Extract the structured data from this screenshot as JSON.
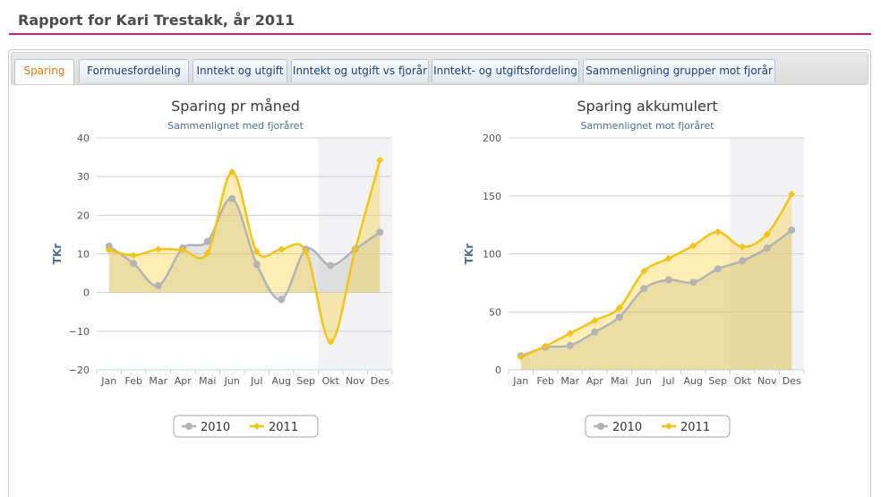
{
  "report": {
    "title": "Rapport for Kari Trestakk, år 2011"
  },
  "tabs": [
    {
      "label": "Sparing",
      "active": true
    },
    {
      "label": "Formuesfordeling",
      "active": false
    },
    {
      "label": "Inntekt og utgift",
      "active": false
    },
    {
      "label": "Inntekt og utgift vs fjorår",
      "active": false
    },
    {
      "label": "Inntekt- og utgiftsfordeling",
      "active": false
    },
    {
      "label": "Sammenligning grupper mot fjorår",
      "active": false
    }
  ],
  "colors": {
    "series_2010": "#b3b3b3",
    "series_2011": "#f2c419",
    "accent_line": "#cc1f7e",
    "active_tab": "#e07a10"
  },
  "chart_data": [
    {
      "type": "area",
      "title": "Sparing pr måned",
      "subtitle": "Sammenlignet med fjoråret",
      "ylabel": "TKr",
      "categories": [
        "Jan",
        "Feb",
        "Mar",
        "Apr",
        "Mai",
        "Jun",
        "Jul",
        "Aug",
        "Sep",
        "Okt",
        "Nov",
        "Des"
      ],
      "ylim": [
        -20,
        40
      ],
      "yticks": [
        -20,
        -10,
        0,
        10,
        20,
        30,
        40
      ],
      "shaded_categories": [
        "Okt",
        "Nov",
        "Des"
      ],
      "grid": true,
      "legend": "bottom-center",
      "series": [
        {
          "name": "2010",
          "values": [
            12,
            7.5,
            1.8,
            11.5,
            13.2,
            24.3,
            7.3,
            -1.8,
            11.2,
            7,
            11.2,
            15.6
          ]
        },
        {
          "name": "2011",
          "values": [
            11,
            9.6,
            11.2,
            11,
            10.2,
            31.2,
            10.6,
            11.2,
            10.6,
            -12.8,
            11.1,
            34.2
          ]
        }
      ]
    },
    {
      "type": "area",
      "title": "Sparing akkumulert",
      "subtitle": "Sammenlignet mot fjoråret",
      "ylabel": "TKr",
      "categories": [
        "Jan",
        "Feb",
        "Mar",
        "Apr",
        "Mai",
        "Jun",
        "Jul",
        "Aug",
        "Sep",
        "Okt",
        "Nov",
        "Des"
      ],
      "ylim": [
        0,
        200
      ],
      "yticks": [
        0,
        50,
        100,
        150,
        200
      ],
      "shaded_categories": [
        "Okt",
        "Nov",
        "Des"
      ],
      "grid": true,
      "legend": "bottom-center",
      "series": [
        {
          "name": "2010",
          "values": [
            12,
            19.5,
            21,
            32.5,
            45.5,
            70,
            77.5,
            75.5,
            87,
            94,
            105,
            120.5
          ]
        },
        {
          "name": "2011",
          "values": [
            11,
            20.5,
            31.5,
            42.5,
            53.5,
            85,
            96,
            107,
            119,
            106,
            117,
            151.5
          ]
        }
      ]
    }
  ]
}
